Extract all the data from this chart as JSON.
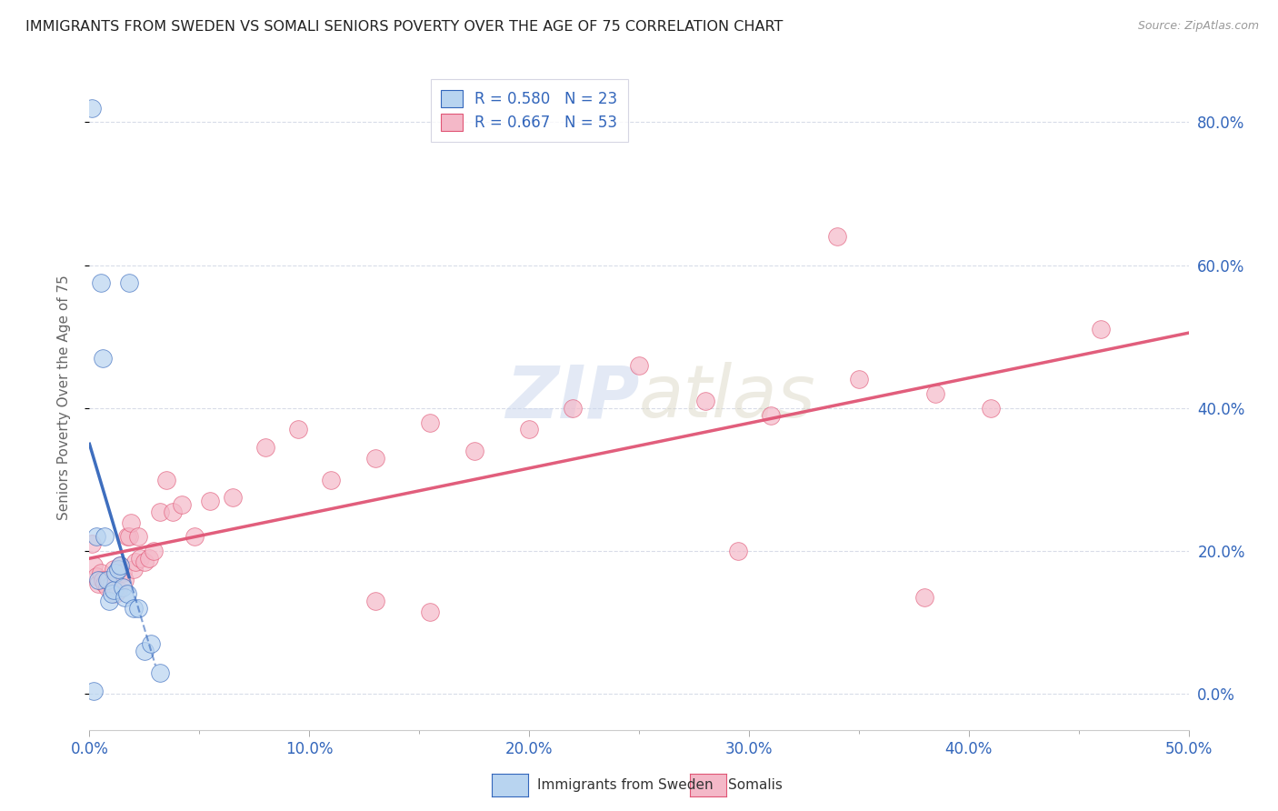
{
  "title": "IMMIGRANTS FROM SWEDEN VS SOMALI SENIORS POVERTY OVER THE AGE OF 75 CORRELATION CHART",
  "source": "Source: ZipAtlas.com",
  "ylabel": "Seniors Poverty Over the Age of 75",
  "xmin": 0.0,
  "xmax": 0.5,
  "ymin": -0.05,
  "ymax": 0.88,
  "sweden_R": 0.58,
  "sweden_N": 23,
  "somali_R": 0.667,
  "somali_N": 53,
  "sweden_color": "#b8d4f0",
  "somali_color": "#f4b8c8",
  "sweden_line_color": "#3366bb",
  "somali_line_color": "#e05575",
  "grid_color": "#d8dce8",
  "title_color": "#222222",
  "axis_label_color": "#666666",
  "right_axis_color": "#3366bb",
  "sweden_scatter_x": [
    0.001,
    0.002,
    0.003,
    0.004,
    0.005,
    0.006,
    0.007,
    0.008,
    0.009,
    0.01,
    0.011,
    0.012,
    0.013,
    0.014,
    0.015,
    0.016,
    0.017,
    0.018,
    0.02,
    0.022,
    0.025,
    0.028,
    0.032
  ],
  "sweden_scatter_y": [
    0.82,
    0.005,
    0.22,
    0.16,
    0.575,
    0.47,
    0.22,
    0.16,
    0.13,
    0.14,
    0.145,
    0.17,
    0.175,
    0.18,
    0.15,
    0.135,
    0.14,
    0.575,
    0.12,
    0.12,
    0.06,
    0.07,
    0.03
  ],
  "somali_scatter_x": [
    0.001,
    0.002,
    0.003,
    0.004,
    0.005,
    0.006,
    0.007,
    0.008,
    0.009,
    0.01,
    0.011,
    0.012,
    0.013,
    0.014,
    0.015,
    0.016,
    0.017,
    0.018,
    0.019,
    0.02,
    0.021,
    0.022,
    0.023,
    0.025,
    0.027,
    0.029,
    0.032,
    0.035,
    0.038,
    0.042,
    0.048,
    0.055,
    0.065,
    0.08,
    0.095,
    0.11,
    0.13,
    0.155,
    0.175,
    0.2,
    0.22,
    0.25,
    0.28,
    0.31,
    0.35,
    0.385,
    0.13,
    0.155,
    0.34,
    0.295,
    0.38,
    0.41,
    0.46
  ],
  "somali_scatter_y": [
    0.21,
    0.18,
    0.165,
    0.155,
    0.17,
    0.16,
    0.155,
    0.15,
    0.16,
    0.155,
    0.175,
    0.14,
    0.145,
    0.18,
    0.17,
    0.16,
    0.22,
    0.22,
    0.24,
    0.175,
    0.185,
    0.22,
    0.19,
    0.185,
    0.19,
    0.2,
    0.255,
    0.3,
    0.255,
    0.265,
    0.22,
    0.27,
    0.275,
    0.345,
    0.37,
    0.3,
    0.33,
    0.38,
    0.34,
    0.37,
    0.4,
    0.46,
    0.41,
    0.39,
    0.44,
    0.42,
    0.13,
    0.115,
    0.64,
    0.2,
    0.135,
    0.4,
    0.51
  ],
  "watermark_color": "#ccd8ee",
  "legend_items": [
    "Immigrants from Sweden",
    "Somalis"
  ],
  "yticks": [
    0.0,
    0.2,
    0.4,
    0.6,
    0.8
  ],
  "ytick_labels_right": [
    "0.0%",
    "20.0%",
    "40.0%",
    "60.0%",
    "80.0%"
  ],
  "xticks": [
    0.0,
    0.1,
    0.2,
    0.3,
    0.4,
    0.5
  ],
  "xtick_labels": [
    "0.0%",
    "10.0%",
    "20.0%",
    "30.0%",
    "40.0%",
    "50.0%"
  ],
  "minor_xticks": [
    0.05,
    0.15,
    0.25,
    0.35,
    0.45
  ]
}
